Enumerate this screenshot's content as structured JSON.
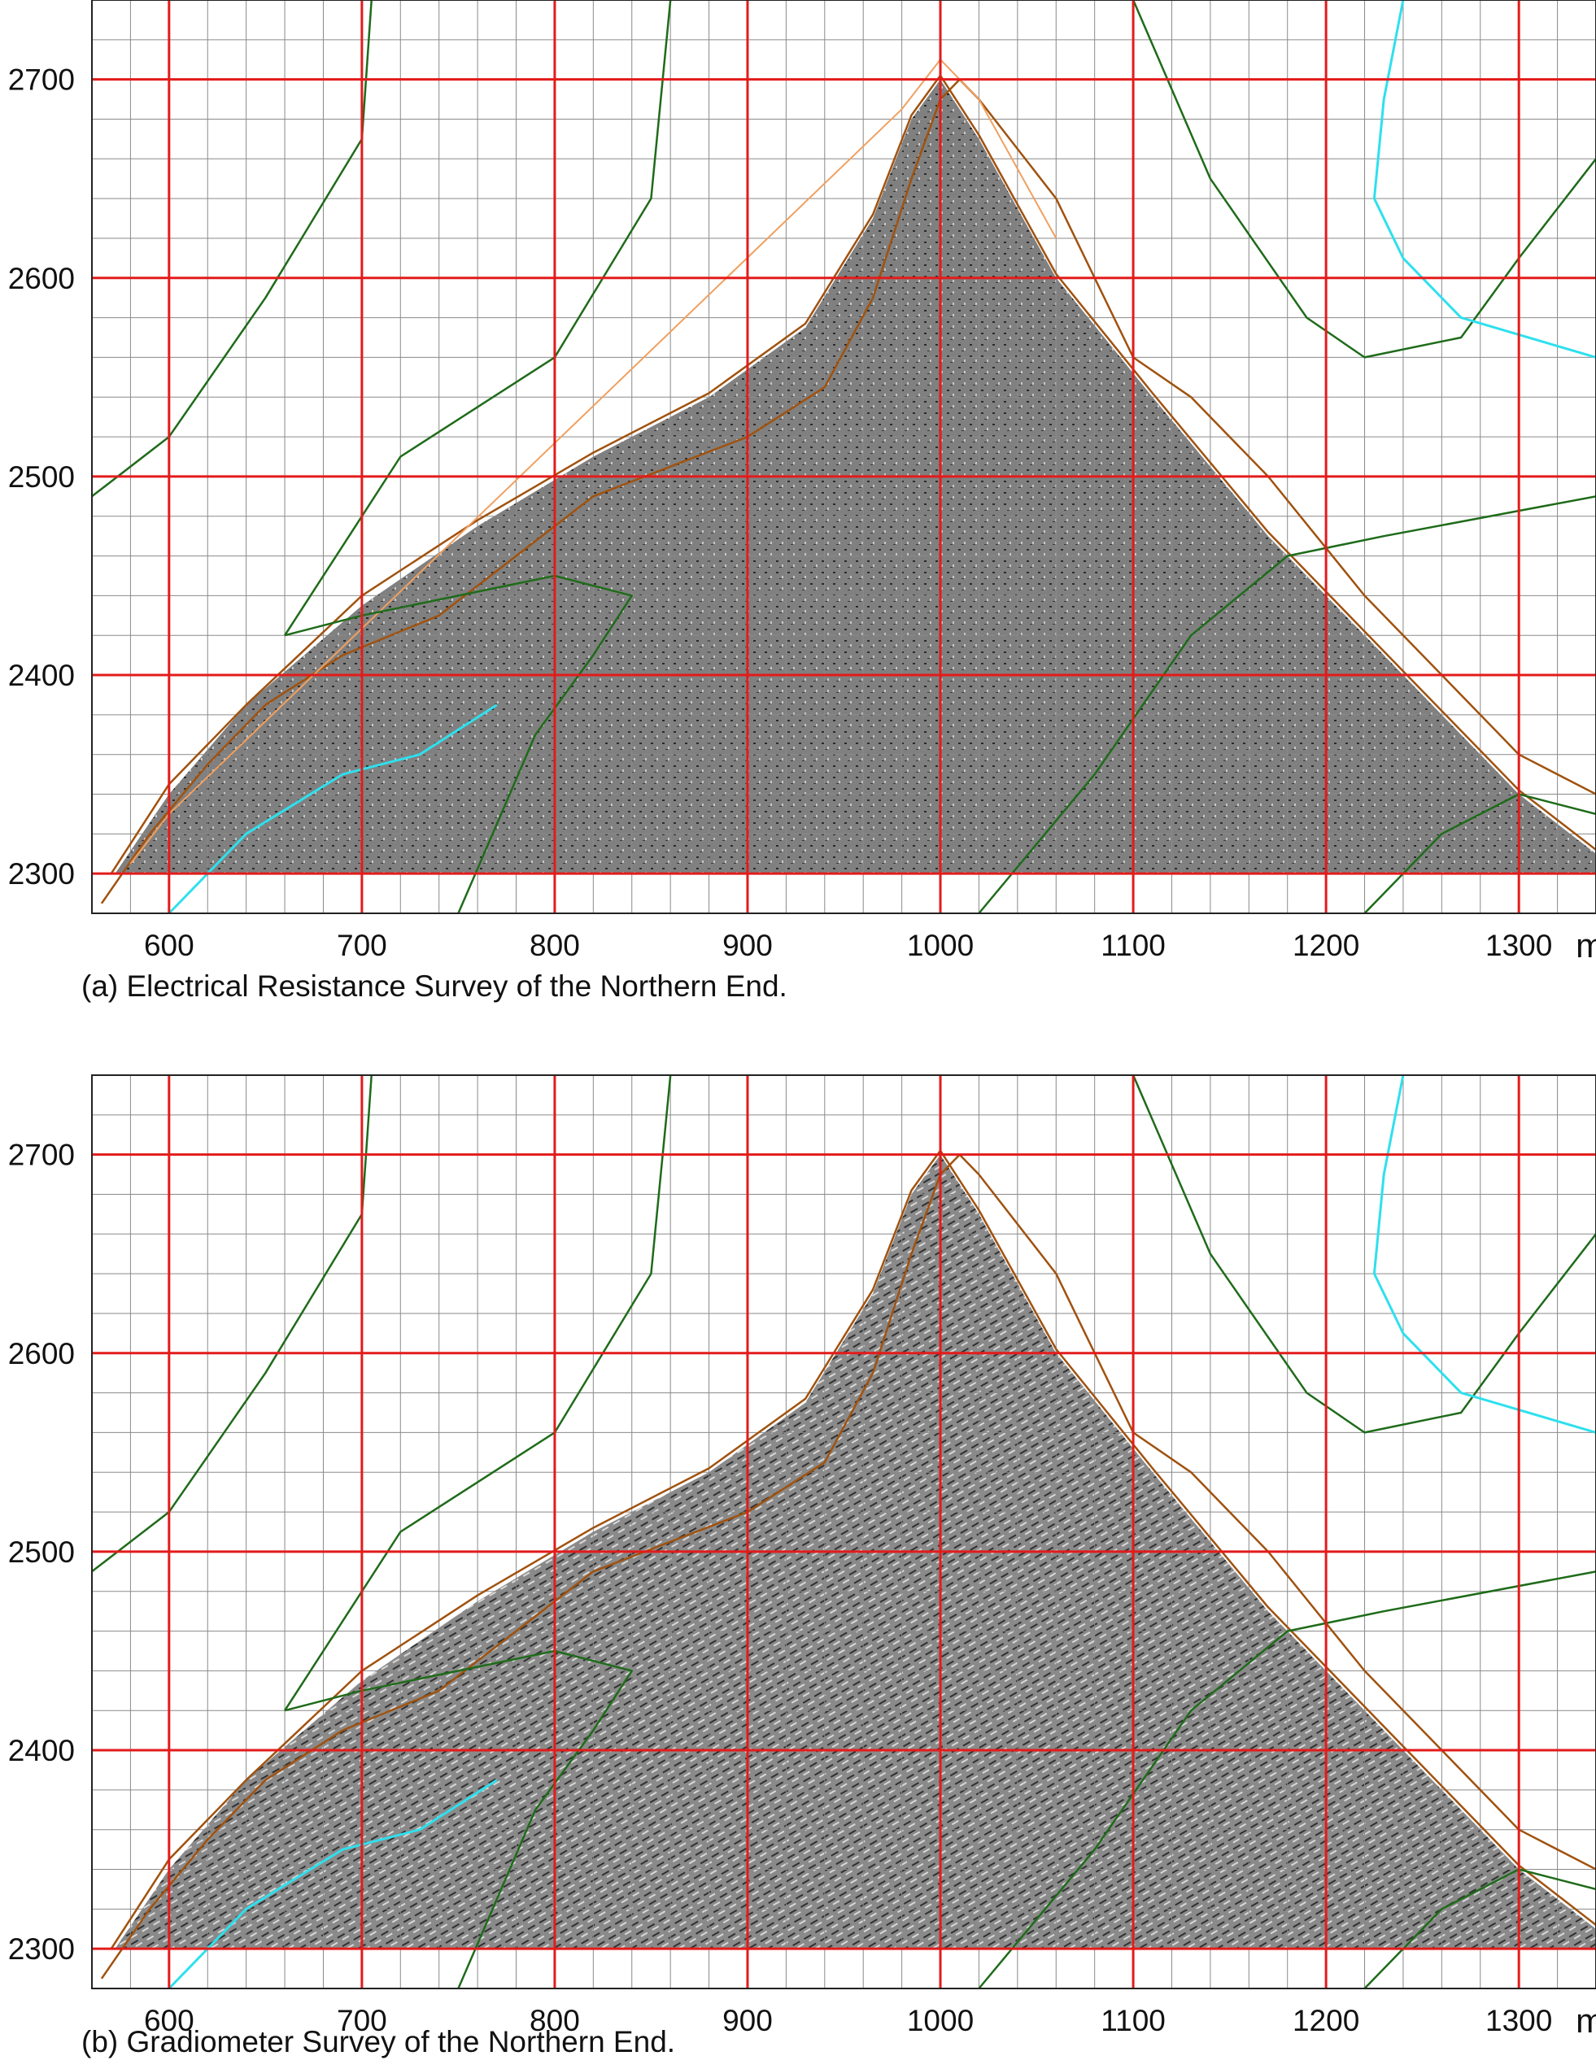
{
  "axis": {
    "x_range": [
      560,
      1340
    ],
    "y_range": [
      2280,
      2740
    ],
    "x_ticks": [
      600,
      700,
      800,
      900,
      1000,
      1100,
      1200,
      1300
    ],
    "x_tick_labels": [
      "600",
      "700",
      "800",
      "900",
      "1000",
      "1100",
      "1200",
      "1300"
    ],
    "y_ticks": [
      2300,
      2400,
      2500,
      2600,
      2700
    ],
    "y_tick_labels": [
      "2300",
      "2400",
      "2500",
      "2600",
      "2700"
    ],
    "unit": "m",
    "major_grid_step": 100,
    "minor_grid_step": 20
  },
  "colors": {
    "major_grid": "#e31b1b",
    "minor_grid": "#8a8a8a",
    "contour_brown": "#a0520f",
    "contour_orange": "#f0a060",
    "contour_green": "#1f6b1a",
    "stream_cyan": "#2ee0ee",
    "survey_fill": "#7d7d7d"
  },
  "panels": [
    {
      "id": "a",
      "caption": "(a) Electrical Resistance Survey of the Northern End.",
      "survey_type": "resistance",
      "show_orange_contour": true
    },
    {
      "id": "b",
      "caption": "(b) Gradiometer Survey of the Northern End.",
      "survey_type": "gradiometer",
      "show_orange_contour": false
    }
  ]
}
